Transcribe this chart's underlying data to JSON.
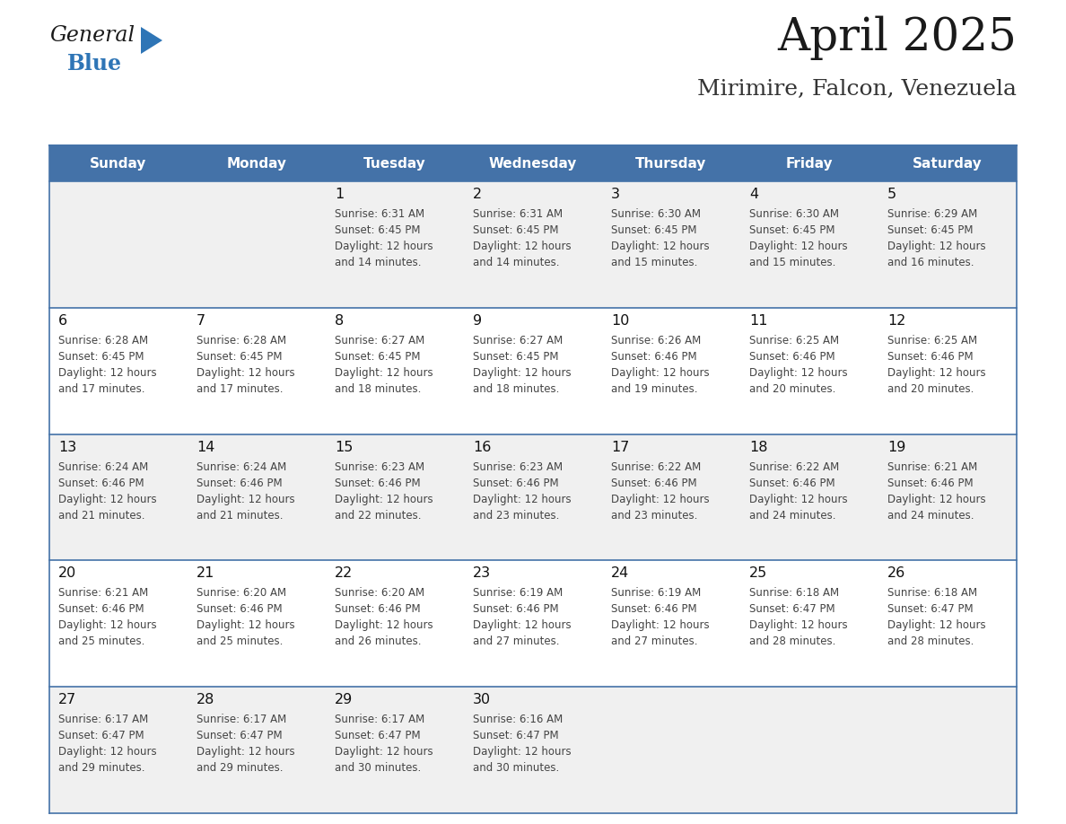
{
  "title": "April 2025",
  "subtitle": "Mirimire, Falcon, Venezuela",
  "header_bg_color": "#4472a8",
  "header_text_color": "#ffffff",
  "cell_bg_even": "#f0f0f0",
  "cell_bg_odd": "#ffffff",
  "day_headers": [
    "Sunday",
    "Monday",
    "Tuesday",
    "Wednesday",
    "Thursday",
    "Friday",
    "Saturday"
  ],
  "title_color": "#1a1a1a",
  "subtitle_color": "#333333",
  "cell_text_color": "#444444",
  "day_num_color": "#111111",
  "grid_line_color": "#4472a8",
  "logo_general_color": "#1a1a1a",
  "logo_blue_color": "#2e75b6",
  "logo_triangle_color": "#2e75b6",
  "weeks": [
    [
      {
        "day": null,
        "data": ""
      },
      {
        "day": null,
        "data": ""
      },
      {
        "day": 1,
        "data": "Sunrise: 6:31 AM\nSunset: 6:45 PM\nDaylight: 12 hours\nand 14 minutes."
      },
      {
        "day": 2,
        "data": "Sunrise: 6:31 AM\nSunset: 6:45 PM\nDaylight: 12 hours\nand 14 minutes."
      },
      {
        "day": 3,
        "data": "Sunrise: 6:30 AM\nSunset: 6:45 PM\nDaylight: 12 hours\nand 15 minutes."
      },
      {
        "day": 4,
        "data": "Sunrise: 6:30 AM\nSunset: 6:45 PM\nDaylight: 12 hours\nand 15 minutes."
      },
      {
        "day": 5,
        "data": "Sunrise: 6:29 AM\nSunset: 6:45 PM\nDaylight: 12 hours\nand 16 minutes."
      }
    ],
    [
      {
        "day": 6,
        "data": "Sunrise: 6:28 AM\nSunset: 6:45 PM\nDaylight: 12 hours\nand 17 minutes."
      },
      {
        "day": 7,
        "data": "Sunrise: 6:28 AM\nSunset: 6:45 PM\nDaylight: 12 hours\nand 17 minutes."
      },
      {
        "day": 8,
        "data": "Sunrise: 6:27 AM\nSunset: 6:45 PM\nDaylight: 12 hours\nand 18 minutes."
      },
      {
        "day": 9,
        "data": "Sunrise: 6:27 AM\nSunset: 6:45 PM\nDaylight: 12 hours\nand 18 minutes."
      },
      {
        "day": 10,
        "data": "Sunrise: 6:26 AM\nSunset: 6:46 PM\nDaylight: 12 hours\nand 19 minutes."
      },
      {
        "day": 11,
        "data": "Sunrise: 6:25 AM\nSunset: 6:46 PM\nDaylight: 12 hours\nand 20 minutes."
      },
      {
        "day": 12,
        "data": "Sunrise: 6:25 AM\nSunset: 6:46 PM\nDaylight: 12 hours\nand 20 minutes."
      }
    ],
    [
      {
        "day": 13,
        "data": "Sunrise: 6:24 AM\nSunset: 6:46 PM\nDaylight: 12 hours\nand 21 minutes."
      },
      {
        "day": 14,
        "data": "Sunrise: 6:24 AM\nSunset: 6:46 PM\nDaylight: 12 hours\nand 21 minutes."
      },
      {
        "day": 15,
        "data": "Sunrise: 6:23 AM\nSunset: 6:46 PM\nDaylight: 12 hours\nand 22 minutes."
      },
      {
        "day": 16,
        "data": "Sunrise: 6:23 AM\nSunset: 6:46 PM\nDaylight: 12 hours\nand 23 minutes."
      },
      {
        "day": 17,
        "data": "Sunrise: 6:22 AM\nSunset: 6:46 PM\nDaylight: 12 hours\nand 23 minutes."
      },
      {
        "day": 18,
        "data": "Sunrise: 6:22 AM\nSunset: 6:46 PM\nDaylight: 12 hours\nand 24 minutes."
      },
      {
        "day": 19,
        "data": "Sunrise: 6:21 AM\nSunset: 6:46 PM\nDaylight: 12 hours\nand 24 minutes."
      }
    ],
    [
      {
        "day": 20,
        "data": "Sunrise: 6:21 AM\nSunset: 6:46 PM\nDaylight: 12 hours\nand 25 minutes."
      },
      {
        "day": 21,
        "data": "Sunrise: 6:20 AM\nSunset: 6:46 PM\nDaylight: 12 hours\nand 25 minutes."
      },
      {
        "day": 22,
        "data": "Sunrise: 6:20 AM\nSunset: 6:46 PM\nDaylight: 12 hours\nand 26 minutes."
      },
      {
        "day": 23,
        "data": "Sunrise: 6:19 AM\nSunset: 6:46 PM\nDaylight: 12 hours\nand 27 minutes."
      },
      {
        "day": 24,
        "data": "Sunrise: 6:19 AM\nSunset: 6:46 PM\nDaylight: 12 hours\nand 27 minutes."
      },
      {
        "day": 25,
        "data": "Sunrise: 6:18 AM\nSunset: 6:47 PM\nDaylight: 12 hours\nand 28 minutes."
      },
      {
        "day": 26,
        "data": "Sunrise: 6:18 AM\nSunset: 6:47 PM\nDaylight: 12 hours\nand 28 minutes."
      }
    ],
    [
      {
        "day": 27,
        "data": "Sunrise: 6:17 AM\nSunset: 6:47 PM\nDaylight: 12 hours\nand 29 minutes."
      },
      {
        "day": 28,
        "data": "Sunrise: 6:17 AM\nSunset: 6:47 PM\nDaylight: 12 hours\nand 29 minutes."
      },
      {
        "day": 29,
        "data": "Sunrise: 6:17 AM\nSunset: 6:47 PM\nDaylight: 12 hours\nand 30 minutes."
      },
      {
        "day": 30,
        "data": "Sunrise: 6:16 AM\nSunset: 6:47 PM\nDaylight: 12 hours\nand 30 minutes."
      },
      {
        "day": null,
        "data": ""
      },
      {
        "day": null,
        "data": ""
      },
      {
        "day": null,
        "data": ""
      }
    ]
  ]
}
